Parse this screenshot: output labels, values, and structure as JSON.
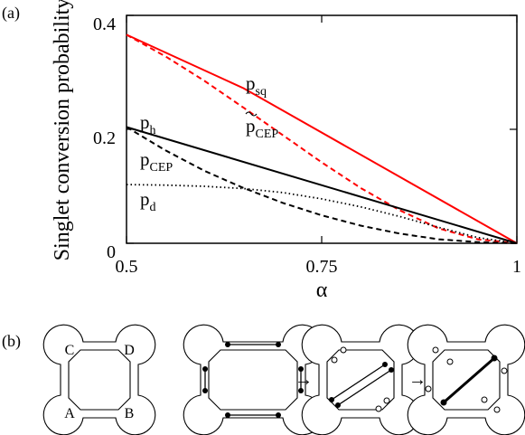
{
  "panels": {
    "a": "(a)",
    "b": "(b)"
  },
  "chart_data": {
    "type": "line",
    "title": "",
    "xlabel": "α",
    "ylabel": "Singlet conversion probability",
    "xlim": [
      0.5,
      1.0
    ],
    "ylim": [
      0,
      0.4
    ],
    "xticks": [
      "0.5",
      "0.75",
      "1"
    ],
    "yticks": [
      "0",
      "0.2",
      "0.4"
    ],
    "grid": false,
    "legend": "none",
    "series": [
      {
        "label_main": "p",
        "label_sub": "sq",
        "label_tilde": false,
        "color": "#ff0000",
        "dash": "solid",
        "x": [
          0.5,
          0.65,
          1.0
        ],
        "y": [
          0.366,
          0.272,
          0.0
        ]
      },
      {
        "label_main": "p",
        "label_sub": "CEP",
        "label_tilde": true,
        "color": "#ff0000",
        "dash": "dashed",
        "x": [
          0.5,
          0.55,
          0.6,
          0.65,
          0.7,
          0.75,
          0.8,
          0.85,
          0.9,
          0.95,
          1.0
        ],
        "y": [
          0.366,
          0.328,
          0.285,
          0.238,
          0.19,
          0.142,
          0.097,
          0.058,
          0.026,
          0.007,
          0.0
        ]
      },
      {
        "label_main": "p",
        "label_sub": "h",
        "label_tilde": false,
        "color": "#000000",
        "dash": "solid",
        "x": [
          0.5,
          1.0
        ],
        "y": [
          0.204,
          0.0
        ]
      },
      {
        "label_main": "p",
        "label_sub": "CEP",
        "label_tilde": false,
        "color": "#000000",
        "dash": "dashed",
        "x": [
          0.5,
          0.55,
          0.6,
          0.65,
          0.7,
          0.75,
          0.8,
          0.85,
          0.9,
          0.95,
          1.0
        ],
        "y": [
          0.204,
          0.163,
          0.127,
          0.097,
          0.071,
          0.049,
          0.031,
          0.017,
          0.007,
          0.002,
          0.0
        ]
      },
      {
        "label_main": "p",
        "label_sub": "d",
        "label_tilde": false,
        "color": "#000000",
        "dash": "dotted",
        "x": [
          0.5,
          0.55,
          0.6,
          0.65,
          0.7,
          0.75,
          0.8,
          0.85,
          0.9,
          0.95,
          1.0
        ],
        "y": [
          0.103,
          0.102,
          0.1,
          0.096,
          0.089,
          0.078,
          0.064,
          0.047,
          0.028,
          0.01,
          0.0
        ]
      }
    ]
  },
  "diagram": {
    "vertex_labels": {
      "c": "C",
      "d": "D",
      "a": "A",
      "b": "B"
    },
    "arrow": "→"
  }
}
